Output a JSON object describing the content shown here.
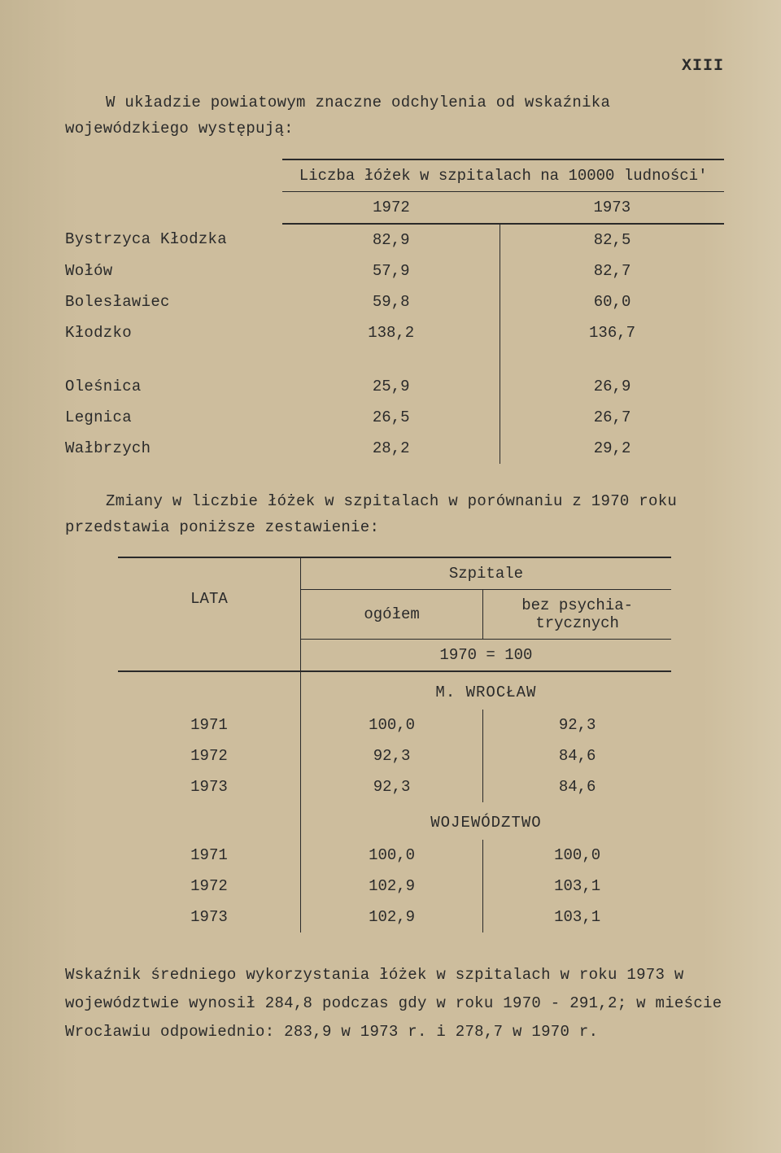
{
  "page_number": "XIII",
  "intro_text": "W układzie powiatowym znaczne odchylenia od wskaźnika wojewódzkiego występują:",
  "table1": {
    "header_span": "Liczba łóżek w szpitalach na 10000 ludności'",
    "years": [
      "1972",
      "1973"
    ],
    "rows_a": [
      {
        "label": "Bystrzyca Kłodzka",
        "v1": "82,9",
        "v2": "82,5"
      },
      {
        "label": "Wołów",
        "v1": "57,9",
        "v2": "82,7"
      },
      {
        "label": "Bolesławiec",
        "v1": "59,8",
        "v2": "60,0"
      },
      {
        "label": "Kłodzko",
        "v1": "138,2",
        "v2": "136,7"
      }
    ],
    "rows_b": [
      {
        "label": "Oleśnica",
        "v1": "25,9",
        "v2": "26,9"
      },
      {
        "label": "Legnica",
        "v1": "26,5",
        "v2": "26,7"
      },
      {
        "label": "Wałbrzych",
        "v1": "28,2",
        "v2": "29,2"
      }
    ]
  },
  "mid_text": "Zmiany w liczbie łóżek w szpitalach w porównaniu z 1970 roku przedstawia poniższe zestawienie:",
  "table2": {
    "col_lata": "LATA",
    "col_szpitale": "Szpitale",
    "col_ogolem": "ogółem",
    "col_bezpsych": "bez psychia-\ntrycznych",
    "base": "1970 = 100",
    "sect_a": "M. WROCŁAW",
    "rows_a": [
      {
        "y": "1971",
        "v1": "100,0",
        "v2": "92,3"
      },
      {
        "y": "1972",
        "v1": "92,3",
        "v2": "84,6"
      },
      {
        "y": "1973",
        "v1": "92,3",
        "v2": "84,6"
      }
    ],
    "sect_b": "WOJEWÓDZTWO",
    "rows_b": [
      {
        "y": "1971",
        "v1": "100,0",
        "v2": "100,0"
      },
      {
        "y": "1972",
        "v1": "102,9",
        "v2": "103,1"
      },
      {
        "y": "1973",
        "v1": "102,9",
        "v2": "103,1"
      }
    ]
  },
  "final_text": "Wskaźnik średniego wykorzystania łóżek w szpitalach w roku 1973 w województwie wynosił 284,8 podczas gdy w roku 1970 - 291,2; w mieście Wrocławiu odpowiednio: 283,9 w 1973 r. i 278,7 w 1970 r."
}
